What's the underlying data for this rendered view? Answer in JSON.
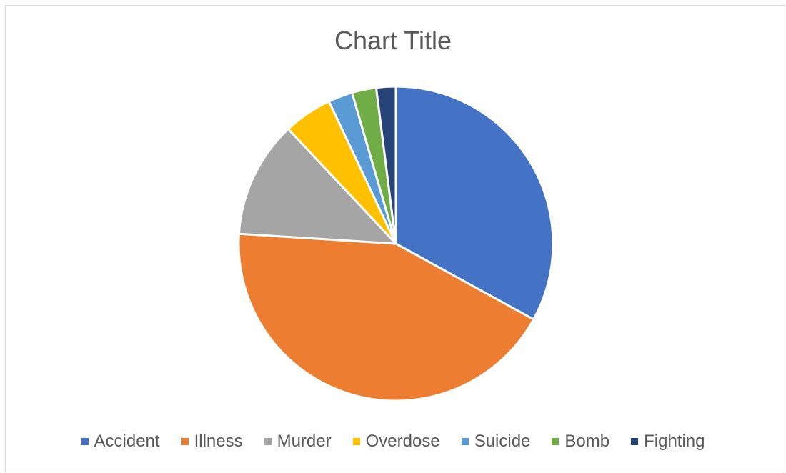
{
  "chart_data": {
    "type": "pie",
    "title": "Chart Title",
    "legend_position": "bottom",
    "categories": [
      "Accident",
      "Illness",
      "Murder",
      "Overdose",
      "Suicide",
      "Bomb",
      "Fighting"
    ],
    "values": [
      33,
      43,
      12,
      5,
      2.5,
      2.5,
      2
    ],
    "colors": [
      "#4472C4",
      "#ED7D31",
      "#A5A5A5",
      "#FFC000",
      "#5B9BD5",
      "#70AD47",
      "#264478"
    ]
  }
}
